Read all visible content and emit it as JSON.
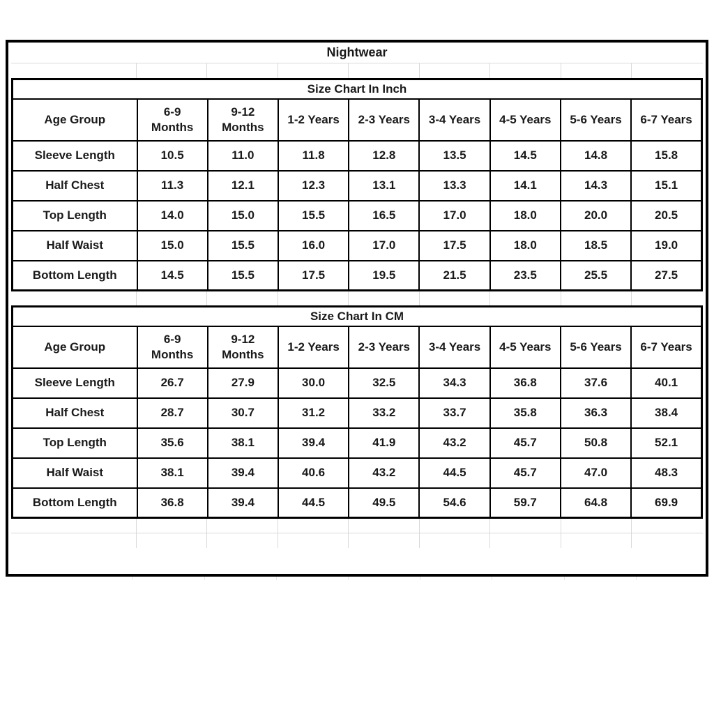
{
  "page": {
    "title": "Nightwear"
  },
  "tables": [
    {
      "id": "inch",
      "section_title": "Size Chart In Inch",
      "columns": [
        "Age Group",
        "6-9\nMonths",
        "9-12\nMonths",
        "1-2 Years",
        "2-3 Years",
        "3-4 Years",
        "4-5 Years",
        "5-6 Years",
        "6-7 Years"
      ],
      "rows": [
        {
          "label": "Sleeve Length",
          "values": [
            "10.5",
            "11.0",
            "11.8",
            "12.8",
            "13.5",
            "14.5",
            "14.8",
            "15.8"
          ]
        },
        {
          "label": "Half Chest",
          "values": [
            "11.3",
            "12.1",
            "12.3",
            "13.1",
            "13.3",
            "14.1",
            "14.3",
            "15.1"
          ]
        },
        {
          "label": "Top Length",
          "values": [
            "14.0",
            "15.0",
            "15.5",
            "16.5",
            "17.0",
            "18.0",
            "20.0",
            "20.5"
          ]
        },
        {
          "label": "Half Waist",
          "values": [
            "15.0",
            "15.5",
            "16.0",
            "17.0",
            "17.5",
            "18.0",
            "18.5",
            "19.0"
          ]
        },
        {
          "label": "Bottom Length",
          "values": [
            "14.5",
            "15.5",
            "17.5",
            "19.5",
            "21.5",
            "23.5",
            "25.5",
            "27.5"
          ]
        }
      ]
    },
    {
      "id": "cm",
      "section_title": "Size Chart In CM",
      "columns": [
        "Age Group",
        "6-9\nMonths",
        "9-12\nMonths",
        "1-2 Years",
        "2-3 Years",
        "3-4 Years",
        "4-5 Years",
        "5-6 Years",
        "6-7 Years"
      ],
      "rows": [
        {
          "label": "Sleeve Length",
          "values": [
            "26.7",
            "27.9",
            "30.0",
            "32.5",
            "34.3",
            "36.8",
            "37.6",
            "40.1"
          ]
        },
        {
          "label": "Half Chest",
          "values": [
            "28.7",
            "30.7",
            "31.2",
            "33.2",
            "33.7",
            "35.8",
            "36.3",
            "38.4"
          ]
        },
        {
          "label": "Top Length",
          "values": [
            "35.6",
            "38.1",
            "39.4",
            "41.9",
            "43.2",
            "45.7",
            "50.8",
            "52.1"
          ]
        },
        {
          "label": "Half Waist",
          "values": [
            "38.1",
            "39.4",
            "40.6",
            "43.2",
            "44.5",
            "45.7",
            "47.0",
            "48.3"
          ]
        },
        {
          "label": "Bottom Length",
          "values": [
            "36.8",
            "39.4",
            "44.5",
            "49.5",
            "54.6",
            "59.7",
            "64.8",
            "69.9"
          ]
        }
      ]
    }
  ],
  "colors": {
    "border": "#000000",
    "gridline": "#d9d9d9",
    "text": "#1a1a1a",
    "background": "#ffffff"
  }
}
